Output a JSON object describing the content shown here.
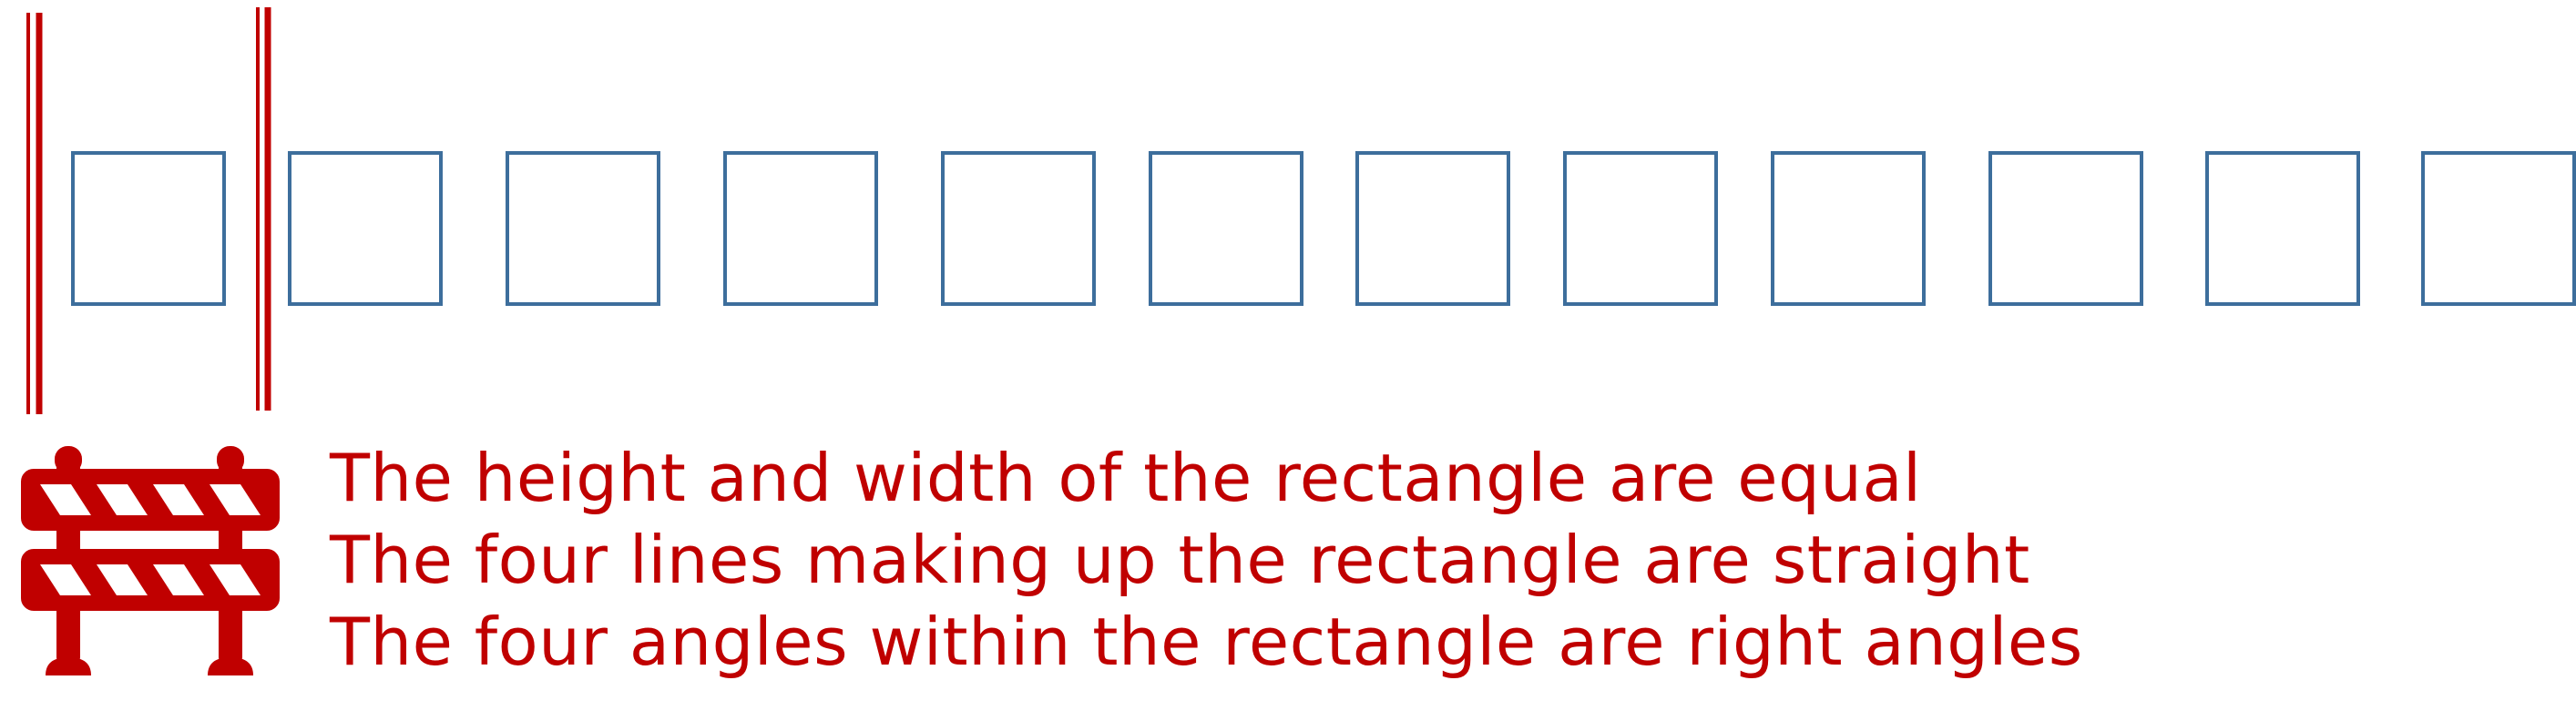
{
  "colors": {
    "square_stroke": "#3d6e9c",
    "accent_red": "#c00000",
    "background": "#ffffff"
  },
  "squares": {
    "count": 12,
    "shape": "square-outline"
  },
  "brackets": {
    "count": 2,
    "style": "double-vertical-line"
  },
  "icon": {
    "name": "road-barrier-icon"
  },
  "captions": [
    "The height and width of the rectangle are equal",
    "The four lines making up the rectangle are straight",
    "The four angles within the rectangle are right angles"
  ]
}
